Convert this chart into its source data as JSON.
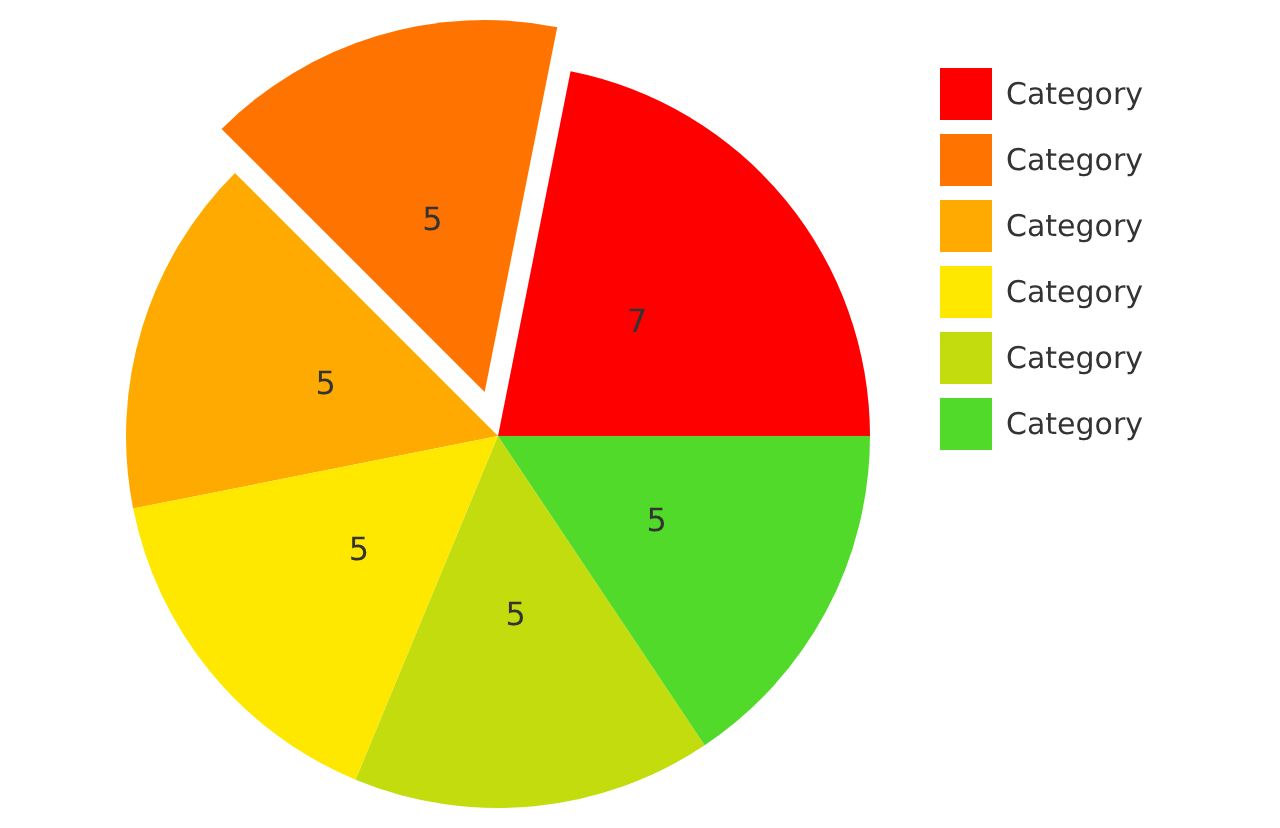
{
  "chart_data": {
    "type": "pie",
    "categories": [
      "Category",
      "Category",
      "Category",
      "Category",
      "Category",
      "Category"
    ],
    "values": [
      7,
      5,
      5,
      5,
      5,
      5
    ],
    "colors": [
      "#ff0000",
      "#ff7400",
      "#ffaa00",
      "#ffe800",
      "#c2dc0e",
      "#52da2a"
    ],
    "data_labels": true,
    "legend": "top right"
  }
}
